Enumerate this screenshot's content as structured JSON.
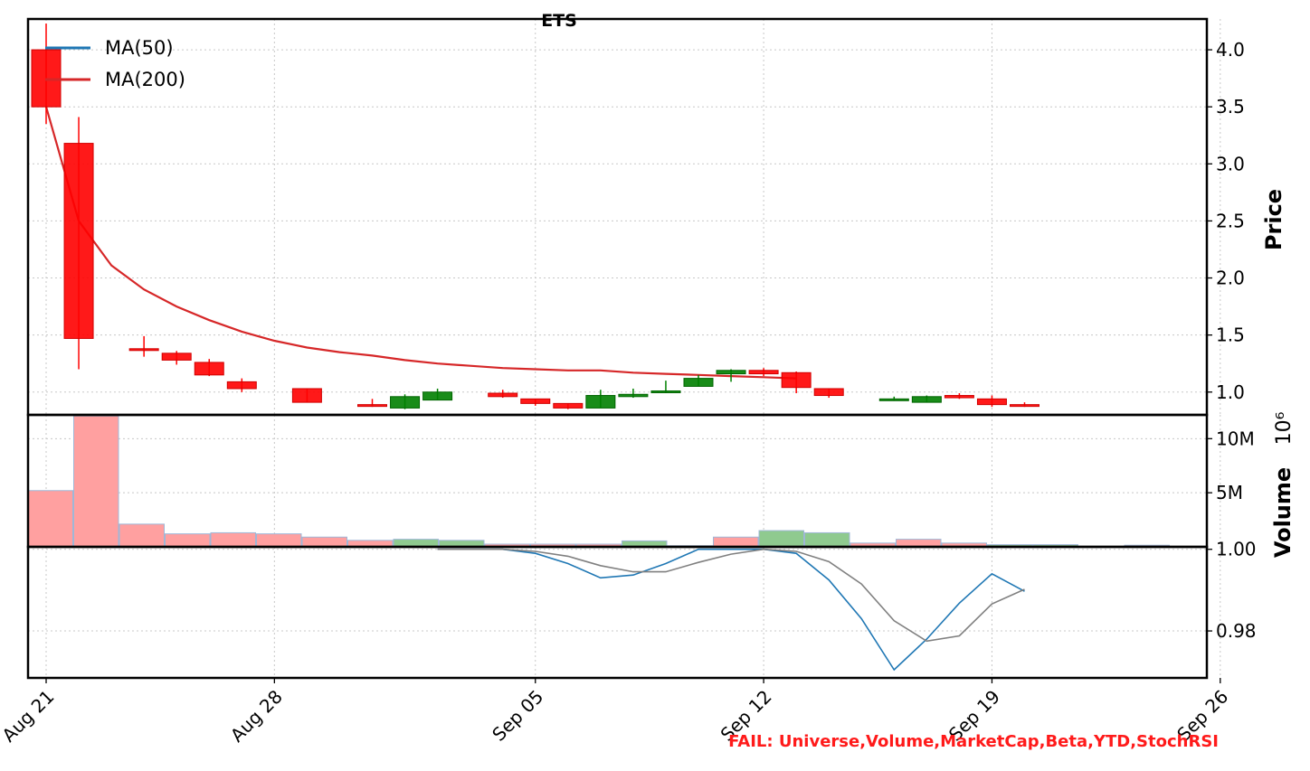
{
  "chart_data": {
    "type": "candlestick",
    "title": "ETS",
    "x_dates": [
      "Aug 21",
      "Aug 22",
      "Aug 23",
      "Aug 24",
      "Aug 25",
      "Aug 26",
      "Aug 27",
      "Aug 28",
      "Aug 29",
      "Aug 30",
      "Aug 31",
      "Sep 01",
      "Sep 02",
      "Sep 03",
      "Sep 04",
      "Sep 05",
      "Sep 06",
      "Sep 07",
      "Sep 08",
      "Sep 09",
      "Sep 10",
      "Sep 11",
      "Sep 12",
      "Sep 13",
      "Sep 14",
      "Sep 15",
      "Sep 16",
      "Sep 17",
      "Sep 18",
      "Sep 19",
      "Sep 20",
      "Sep 21",
      "Sep 22",
      "Sep 23",
      "Sep 24",
      "Sep 25",
      "Sep 26"
    ],
    "x_ticks": [
      {
        "label": "Aug 21",
        "idx": 0
      },
      {
        "label": "Aug 28",
        "idx": 7
      },
      {
        "label": "Sep 05",
        "idx": 15
      },
      {
        "label": "Sep 12",
        "idx": 22
      },
      {
        "label": "Sep 19",
        "idx": 29
      },
      {
        "label": "Sep 26",
        "idx": 36
      }
    ],
    "price_panel": {
      "ylabel": "Price",
      "ylim": [
        0.8,
        4.27
      ],
      "yticks": [
        1.0,
        1.5,
        2.0,
        2.5,
        3.0,
        3.5,
        4.0
      ],
      "candles": [
        {
          "idx": 0,
          "open": 4.0,
          "high": 4.23,
          "low": 3.35,
          "close": 3.5
        },
        {
          "idx": 1,
          "open": 3.18,
          "high": 3.41,
          "low": 1.2,
          "close": 1.47
        },
        {
          "idx": 3,
          "open": 1.38,
          "high": 1.49,
          "low": 1.31,
          "close": 1.37
        },
        {
          "idx": 4,
          "open": 1.34,
          "high": 1.36,
          "low": 1.24,
          "close": 1.28
        },
        {
          "idx": 5,
          "open": 1.26,
          "high": 1.29,
          "low": 1.14,
          "close": 1.15
        },
        {
          "idx": 6,
          "open": 1.09,
          "high": 1.12,
          "low": 1.0,
          "close": 1.03
        },
        {
          "idx": 8,
          "open": 1.03,
          "high": 1.03,
          "low": 0.91,
          "close": 0.91
        },
        {
          "idx": 10,
          "open": 0.89,
          "high": 0.94,
          "low": 0.87,
          "close": 0.88
        },
        {
          "idx": 11,
          "open": 0.86,
          "high": 0.98,
          "low": 0.85,
          "close": 0.96
        },
        {
          "idx": 12,
          "open": 0.93,
          "high": 1.03,
          "low": 0.93,
          "close": 1.0
        },
        {
          "idx": 14,
          "open": 0.99,
          "high": 1.02,
          "low": 0.95,
          "close": 0.96
        },
        {
          "idx": 15,
          "open": 0.94,
          "high": 0.94,
          "low": 0.88,
          "close": 0.9
        },
        {
          "idx": 16,
          "open": 0.9,
          "high": 0.9,
          "low": 0.85,
          "close": 0.86
        },
        {
          "idx": 17,
          "open": 0.86,
          "high": 1.02,
          "low": 0.86,
          "close": 0.97
        },
        {
          "idx": 18,
          "open": 0.96,
          "high": 1.03,
          "low": 0.95,
          "close": 0.98
        },
        {
          "idx": 19,
          "open": 1.0,
          "high": 1.1,
          "low": 0.99,
          "close": 1.01
        },
        {
          "idx": 20,
          "open": 1.05,
          "high": 1.15,
          "low": 1.05,
          "close": 1.12
        },
        {
          "idx": 21,
          "open": 1.16,
          "high": 1.2,
          "low": 1.09,
          "close": 1.19
        },
        {
          "idx": 22,
          "open": 1.19,
          "high": 1.21,
          "low": 1.14,
          "close": 1.16
        },
        {
          "idx": 23,
          "open": 1.17,
          "high": 1.18,
          "low": 0.99,
          "close": 1.04
        },
        {
          "idx": 24,
          "open": 1.03,
          "high": 1.03,
          "low": 0.95,
          "close": 0.97
        },
        {
          "idx": 26,
          "open": 0.93,
          "high": 0.96,
          "low": 0.93,
          "close": 0.94
        },
        {
          "idx": 27,
          "open": 0.91,
          "high": 0.97,
          "low": 0.91,
          "close": 0.96
        },
        {
          "idx": 28,
          "open": 0.97,
          "high": 0.99,
          "low": 0.94,
          "close": 0.95
        },
        {
          "idx": 29,
          "open": 0.94,
          "high": 0.97,
          "low": 0.87,
          "close": 0.89
        },
        {
          "idx": 30,
          "open": 0.89,
          "high": 0.91,
          "low": 0.87,
          "close": 0.88
        }
      ],
      "series": [
        {
          "name": "MA(50)",
          "color": "#1f77b4",
          "values": []
        },
        {
          "name": "MA(200)",
          "color": "#d62728",
          "points": [
            [
              0,
              3.5
            ],
            [
              1,
              2.5
            ],
            [
              2,
              2.11
            ],
            [
              3,
              1.9
            ],
            [
              4,
              1.75
            ],
            [
              5,
              1.63
            ],
            [
              6,
              1.53
            ],
            [
              7,
              1.45
            ],
            [
              8,
              1.39
            ],
            [
              9,
              1.35
            ],
            [
              10,
              1.32
            ],
            [
              11,
              1.28
            ],
            [
              12,
              1.25
            ],
            [
              13,
              1.23
            ],
            [
              14,
              1.21
            ],
            [
              15,
              1.2
            ],
            [
              16,
              1.19
            ],
            [
              17,
              1.19
            ],
            [
              18,
              1.17
            ],
            [
              19,
              1.16
            ],
            [
              20,
              1.15
            ],
            [
              21,
              1.14
            ],
            [
              22,
              1.13
            ],
            [
              23,
              1.12
            ]
          ]
        }
      ],
      "legend_position": "upper-left"
    },
    "volume_panel": {
      "ylabel": "Volume",
      "multiplier": "10⁶",
      "ylim": [
        0,
        12.2
      ],
      "ytick_labels": [
        {
          "label": "5M",
          "value": 5
        },
        {
          "label": "10M",
          "value": 10
        }
      ],
      "bars": [
        {
          "slot": 0,
          "value": 5.2,
          "dir": "down"
        },
        {
          "slot": 1,
          "value": 12.1,
          "dir": "down"
        },
        {
          "slot": 2,
          "value": 2.1,
          "dir": "down"
        },
        {
          "slot": 3,
          "value": 1.2,
          "dir": "down"
        },
        {
          "slot": 4,
          "value": 1.3,
          "dir": "down"
        },
        {
          "slot": 5,
          "value": 1.2,
          "dir": "down"
        },
        {
          "slot": 6,
          "value": 0.9,
          "dir": "down"
        },
        {
          "slot": 7,
          "value": 0.6,
          "dir": "down"
        },
        {
          "slot": 8,
          "value": 0.7,
          "dir": "up"
        },
        {
          "slot": 9,
          "value": 0.6,
          "dir": "up"
        },
        {
          "slot": 10,
          "value": 0.25,
          "dir": "down"
        },
        {
          "slot": 11,
          "value": 0.25,
          "dir": "down"
        },
        {
          "slot": 12,
          "value": 0.25,
          "dir": "down"
        },
        {
          "slot": 13,
          "value": 0.55,
          "dir": "up"
        },
        {
          "slot": 14,
          "value": 0.1,
          "dir": "up"
        },
        {
          "slot": 15,
          "value": 0.9,
          "dir": "down"
        },
        {
          "slot": 16,
          "value": 1.5,
          "dir": "up"
        },
        {
          "slot": 17,
          "value": 1.3,
          "dir": "up"
        },
        {
          "slot": 18,
          "value": 0.35,
          "dir": "down"
        },
        {
          "slot": 19,
          "value": 0.7,
          "dir": "down"
        },
        {
          "slot": 20,
          "value": 0.35,
          "dir": "down"
        },
        {
          "slot": 21,
          "value": 0.2,
          "dir": "up"
        },
        {
          "slot": 22,
          "value": 0.2,
          "dir": "up"
        },
        {
          "slot": 23,
          "value": 0.05,
          "dir": "down"
        },
        {
          "slot": 24,
          "value": 0.15,
          "dir": "down"
        }
      ]
    },
    "indicator_panel": {
      "ylim": [
        0.9685,
        1.0006
      ],
      "yticks": [
        0.98,
        1.0
      ],
      "ytick_labels": [
        "0.98",
        "1.00"
      ],
      "series": [
        {
          "color": "#1f77b4",
          "points": [
            [
              12,
              1.0
            ],
            [
              14,
              1.0
            ],
            [
              15,
              0.999
            ],
            [
              16,
              0.9965
            ],
            [
              17,
              0.993
            ],
            [
              18,
              0.9937
            ],
            [
              19,
              0.9965
            ],
            [
              20,
              1.0
            ],
            [
              22,
              1.0
            ],
            [
              23,
              0.999
            ],
            [
              24,
              0.9925
            ],
            [
              25,
              0.983
            ],
            [
              26,
              0.9705
            ],
            [
              27,
              0.978
            ],
            [
              28,
              0.9868
            ],
            [
              29,
              0.994
            ],
            [
              30,
              0.9897
            ]
          ]
        },
        {
          "color": "#808080",
          "points": [
            [
              12,
              1.0
            ],
            [
              14,
              1.0
            ],
            [
              15,
              0.9995
            ],
            [
              16,
              0.9983
            ],
            [
              17,
              0.996
            ],
            [
              18,
              0.9945
            ],
            [
              19,
              0.9945
            ],
            [
              20,
              0.9968
            ],
            [
              21,
              0.9988
            ],
            [
              22,
              1.0
            ],
            [
              23,
              0.9995
            ],
            [
              24,
              0.997
            ],
            [
              25,
              0.9915
            ],
            [
              26,
              0.9825
            ],
            [
              27,
              0.9775
            ],
            [
              28,
              0.9788
            ],
            [
              29,
              0.9866
            ],
            [
              30,
              0.9902
            ]
          ]
        }
      ]
    },
    "annotations": [
      {
        "text": "FAIL: Universe,Volume,MarketCap,Beta,YTD,StochRSI",
        "color": "#ff1a1a"
      }
    ],
    "colors": {
      "up": "#008000",
      "down": "#ff0000",
      "vol_up": "#8fca8f",
      "vol_down": "#ffa0a0",
      "vol_edge": "#9fb7d7"
    }
  }
}
